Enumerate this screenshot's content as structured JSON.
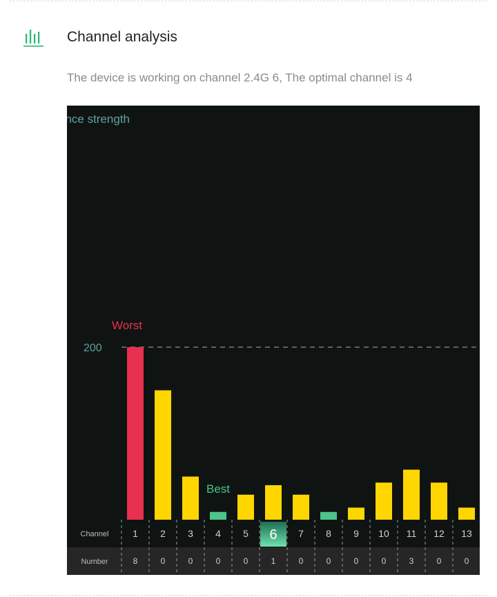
{
  "section": {
    "title": "Channel analysis",
    "description": "The device is working on channel 2.4G 6, The optimal channel is 4",
    "icon": "bar-chart-icon"
  },
  "chart_data": {
    "type": "bar",
    "title": "",
    "ylabel": "ence strength",
    "gridline_label": "200",
    "gridline_value": 200,
    "ylim": [
      0,
      380
    ],
    "categories": [
      "1",
      "2",
      "3",
      "4",
      "5",
      "6",
      "7",
      "8",
      "9",
      "10",
      "11",
      "12",
      "13"
    ],
    "values": [
      200,
      150,
      50,
      9,
      29,
      40,
      29,
      9,
      14,
      43,
      58,
      43,
      14
    ],
    "counts": [
      "8",
      "0",
      "0",
      "0",
      "0",
      "1",
      "0",
      "0",
      "0",
      "0",
      "3",
      "0",
      "0"
    ],
    "row_labels": {
      "channel": "Channel",
      "number": "Number"
    },
    "annotations": {
      "worst": "Worst",
      "best": "Best"
    },
    "worst_index": 0,
    "best_indices": [
      3,
      7
    ],
    "current_index": 5,
    "colors": {
      "background": "#0f1412",
      "bar": "#ffd600",
      "worst": "#e8304f",
      "best": "#4cc48a",
      "current": "#3ec98a",
      "text": "#cfcfcf",
      "muted": "#5fa3a0"
    }
  }
}
